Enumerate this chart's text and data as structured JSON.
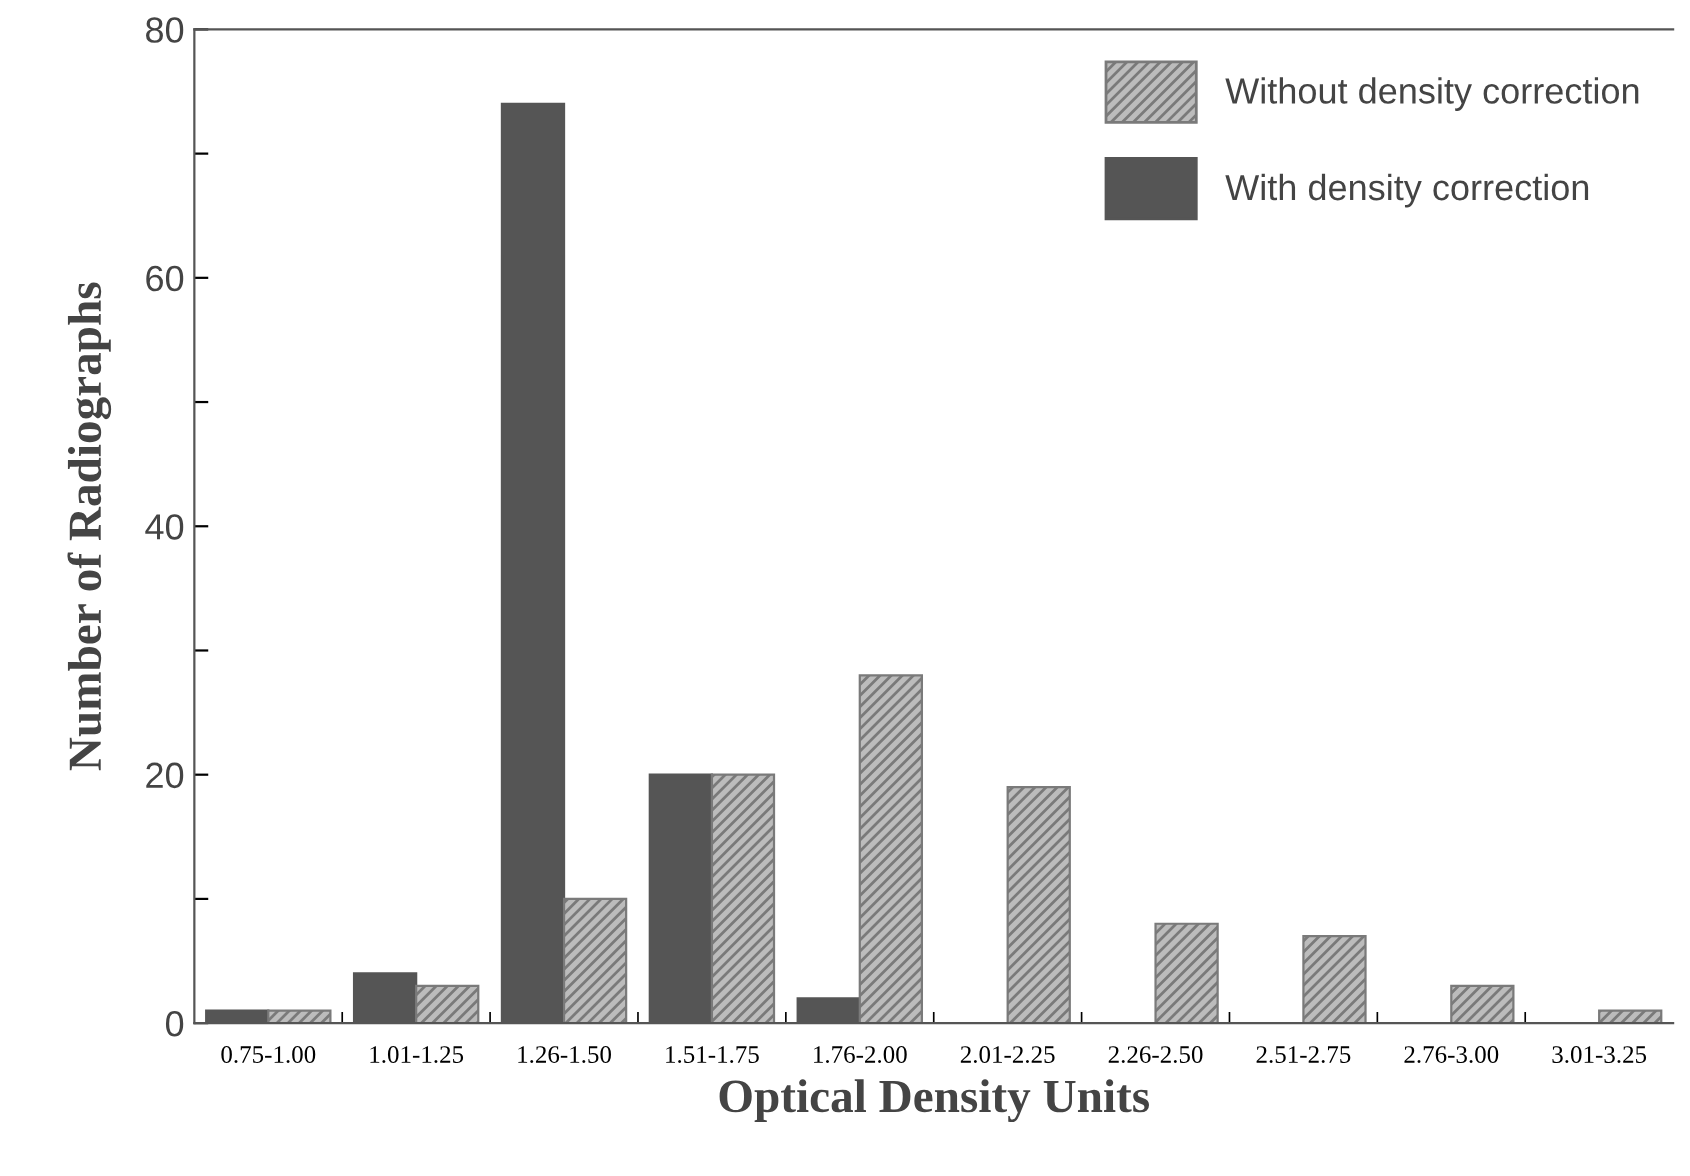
{
  "chart_data": {
    "type": "bar",
    "xlabel": "Optical Density Units",
    "ylabel": "Number of Radiographs",
    "categories": [
      "0.75-1.00",
      "1.01-1.25",
      "1.26-1.50",
      "1.51-1.75",
      "1.76-2.00",
      "2.01-2.25",
      "2.26-2.50",
      "2.51-2.75",
      "2.76-3.00",
      "3.01-3.25"
    ],
    "series": [
      {
        "name": "With density correction",
        "color": "#555555",
        "values": [
          1,
          4,
          74,
          20,
          2,
          0,
          0,
          0,
          0,
          0
        ]
      },
      {
        "name": "Without density correction",
        "color": "#7a7a7a",
        "values": [
          1,
          3,
          10,
          20,
          28,
          19,
          8,
          7,
          3,
          1
        ]
      }
    ],
    "ylim": [
      0,
      80
    ],
    "yticks": [
      0,
      {
        "value": 10,
        "label": null
      },
      20,
      {
        "value": 30,
        "label": null
      },
      40,
      {
        "value": 50,
        "label": null
      },
      60,
      {
        "value": 70,
        "label": null
      },
      80
    ],
    "grid": false,
    "legend": "top right"
  }
}
